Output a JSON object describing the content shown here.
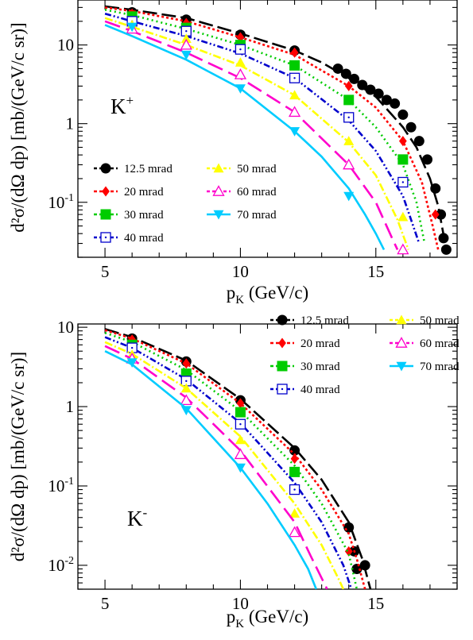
{
  "chart_data": [
    {
      "type": "scatter",
      "panel": "top",
      "particle": {
        "base": "K",
        "sup": "+"
      },
      "xlabel": {
        "main": "p",
        "sub": "K",
        "rest": " (GeV/c)"
      },
      "ylabel": "d²σ/(dΩ dp) [mb/(GeV/c sr)]",
      "xlim": [
        4,
        18
      ],
      "ylim": [
        0.02,
        40
      ],
      "yscale": "log",
      "xticks": [
        5,
        10,
        15
      ],
      "yticks": [
        {
          "v": 0.1,
          "base": "10",
          "exp": "-1"
        },
        {
          "v": 1,
          "base": "1",
          "exp": ""
        },
        {
          "v": 10,
          "base": "10",
          "exp": ""
        }
      ],
      "legend_position": "bottom-left",
      "series": [
        {
          "name": "12.5 mrad",
          "color": "#000000",
          "marker": "circle",
          "dash": "18,6",
          "curve": [
            [
              5,
              31
            ],
            [
              6,
              28
            ],
            [
              8,
              22
            ],
            [
              10,
              14
            ],
            [
              12,
              8.5
            ],
            [
              13,
              6
            ],
            [
              14,
              3.8
            ],
            [
              15,
              2.2
            ],
            [
              16,
              0.9
            ],
            [
              16.5,
              0.5
            ],
            [
              17,
              0.2
            ],
            [
              17.3,
              0.09
            ],
            [
              17.6,
              0.025
            ]
          ],
          "points": [
            [
              6,
              26
            ],
            [
              8,
              21
            ],
            [
              10,
              13.5
            ],
            [
              12,
              8.5
            ],
            [
              13.6,
              5
            ],
            [
              13.9,
              4.3
            ],
            [
              14.2,
              3.7
            ],
            [
              14.5,
              3.1
            ],
            [
              14.8,
              2.7
            ],
            [
              15.1,
              2.4
            ],
            [
              15.4,
              2
            ],
            [
              15.7,
              1.8
            ],
            [
              16,
              1.3
            ],
            [
              16.3,
              0.9
            ],
            [
              16.6,
              0.6
            ],
            [
              16.9,
              0.35
            ],
            [
              17.2,
              0.15
            ],
            [
              17.4,
              0.07
            ],
            [
              17.5,
              0.035
            ],
            [
              17.6,
              0.025
            ]
          ]
        },
        {
          "name": "20 mrad",
          "color": "#ff0000",
          "marker": "diamond",
          "dash": "3,3",
          "curve": [
            [
              5,
              30
            ],
            [
              6,
              27
            ],
            [
              8,
              20
            ],
            [
              10,
              12.5
            ],
            [
              12,
              7.5
            ],
            [
              14,
              3
            ],
            [
              15,
              1.6
            ],
            [
              16,
              0.6
            ],
            [
              16.7,
              0.18
            ],
            [
              17.1,
              0.05
            ],
            [
              17.3,
              0.025
            ]
          ],
          "points": [
            [
              6,
              25
            ],
            [
              8,
              19
            ],
            [
              10,
              12.5
            ],
            [
              12,
              8
            ],
            [
              14,
              3
            ],
            [
              16,
              0.6
            ],
            [
              17.2,
              0.07
            ]
          ]
        },
        {
          "name": "30 mrad",
          "color": "#00cc00",
          "marker": "square",
          "dash": "2,4",
          "curve": [
            [
              5,
              28
            ],
            [
              6,
              24
            ],
            [
              8,
              16
            ],
            [
              10,
              10
            ],
            [
              12,
              5.5
            ],
            [
              14,
              2
            ],
            [
              15,
              0.9
            ],
            [
              16,
              0.3
            ],
            [
              16.5,
              0.1
            ],
            [
              16.8,
              0.03
            ]
          ],
          "points": [
            [
              6,
              23
            ],
            [
              8,
              16.5
            ],
            [
              10,
              10
            ],
            [
              12,
              5.5
            ],
            [
              14,
              2
            ],
            [
              16,
              0.35
            ]
          ]
        },
        {
          "name": "40 mrad",
          "color": "#0000cc",
          "marker": "open-square",
          "dash": "8,3,2,3,2,3",
          "curve": [
            [
              5,
              25
            ],
            [
              6,
              20
            ],
            [
              8,
              13
            ],
            [
              10,
              7.8
            ],
            [
              12,
              3.8
            ],
            [
              14,
              1.1
            ],
            [
              15,
              0.45
            ],
            [
              16,
              0.12
            ],
            [
              16.6,
              0.03
            ]
          ],
          "points": [
            [
              6,
              20
            ],
            [
              8,
              15
            ],
            [
              10,
              8.8
            ],
            [
              12,
              3.8
            ],
            [
              14,
              1.2
            ],
            [
              16,
              0.18
            ]
          ]
        },
        {
          "name": "50 mrad",
          "color": "#ffff00",
          "marker": "triangle-up",
          "dash": "10,3,2,3",
          "curve": [
            [
              5,
              22
            ],
            [
              6,
              17
            ],
            [
              8,
              10
            ],
            [
              10,
              5.5
            ],
            [
              12,
              2.3
            ],
            [
              14,
              0.58
            ],
            [
              15,
              0.22
            ],
            [
              15.8,
              0.06
            ],
            [
              16.2,
              0.025
            ]
          ],
          "points": [
            [
              6,
              18
            ],
            [
              8,
              12
            ],
            [
              10,
              6
            ],
            [
              12,
              2.3
            ],
            [
              14,
              0.6
            ],
            [
              16,
              0.065
            ]
          ]
        },
        {
          "name": "60 mrad",
          "color": "#ff00cc",
          "marker": "open-triangle-up",
          "dash": "20,8",
          "curve": [
            [
              5,
              20
            ],
            [
              6,
              15
            ],
            [
              8,
              8
            ],
            [
              10,
              3.8
            ],
            [
              12,
              1.4
            ],
            [
              14,
              0.3
            ],
            [
              15,
              0.1
            ],
            [
              15.6,
              0.035
            ],
            [
              15.8,
              0.025
            ]
          ],
          "points": [
            [
              6,
              16
            ],
            [
              8,
              10
            ],
            [
              10,
              4.2
            ],
            [
              12,
              1.4
            ],
            [
              14,
              0.3
            ],
            [
              16,
              0.025
            ]
          ]
        },
        {
          "name": "70 mrad",
          "color": "#00ccff",
          "marker": "triangle-down",
          "dash": "",
          "curve": [
            [
              5,
              18
            ],
            [
              6,
              13
            ],
            [
              8,
              6.5
            ],
            [
              10,
              2.8
            ],
            [
              12,
              0.8
            ],
            [
              13,
              0.38
            ],
            [
              14,
              0.15
            ],
            [
              14.6,
              0.07
            ],
            [
              15,
              0.04
            ],
            [
              15.3,
              0.025
            ]
          ],
          "points": [
            [
              6,
              17
            ],
            [
              8,
              7.5
            ],
            [
              10,
              2.8
            ],
            [
              12,
              0.8
            ],
            [
              14,
              0.12
            ]
          ]
        }
      ]
    },
    {
      "type": "scatter",
      "panel": "bottom",
      "particle": {
        "base": "K",
        "sup": "-"
      },
      "xlabel": {
        "main": "p",
        "sub": "K",
        "rest": " (GeV/c)"
      },
      "ylabel": "d²σ/(dΩ dp) [mb/(GeV/c sr)]",
      "xlim": [
        4,
        18
      ],
      "ylim": [
        0.005,
        11
      ],
      "yscale": "log",
      "xticks": [
        5,
        10,
        15
      ],
      "yticks": [
        {
          "v": 0.01,
          "base": "10",
          "exp": "-2"
        },
        {
          "v": 0.1,
          "base": "10",
          "exp": "-1"
        },
        {
          "v": 1,
          "base": "1",
          "exp": ""
        },
        {
          "v": 10,
          "base": "10",
          "exp": ""
        }
      ],
      "legend_position": "top-right",
      "series": [
        {
          "name": "12.5 mrad",
          "color": "#000000",
          "marker": "circle",
          "dash": "18,6",
          "curve": [
            [
              5,
              9.5
            ],
            [
              6,
              7.5
            ],
            [
              8,
              3.8
            ],
            [
              10,
              1.25
            ],
            [
              12,
              0.3
            ],
            [
              13,
              0.12
            ],
            [
              14,
              0.035
            ],
            [
              14.5,
              0.012
            ],
            [
              14.8,
              0.005
            ]
          ],
          "points": [
            [
              6,
              7.2
            ],
            [
              8,
              3.7
            ],
            [
              10,
              1.2
            ],
            [
              12,
              0.28
            ],
            [
              14,
              0.03
            ],
            [
              14.2,
              0.015
            ],
            [
              14.6,
              0.01
            ],
            [
              14.3,
              0.009
            ]
          ]
        },
        {
          "name": "20 mrad",
          "color": "#ff0000",
          "marker": "diamond",
          "dash": "3,3",
          "curve": [
            [
              5,
              9.2
            ],
            [
              6,
              7.2
            ],
            [
              8,
              3.5
            ],
            [
              10,
              1.1
            ],
            [
              12,
              0.25
            ],
            [
              13,
              0.09
            ],
            [
              14,
              0.025
            ],
            [
              14.3,
              0.012
            ],
            [
              14.6,
              0.005
            ]
          ],
          "points": [
            [
              6,
              7
            ],
            [
              8,
              3.5
            ],
            [
              10,
              1.1
            ],
            [
              12,
              0.22
            ],
            [
              14,
              0.015
            ]
          ]
        },
        {
          "name": "30 mrad",
          "color": "#00cc00",
          "marker": "square",
          "dash": "2,4",
          "curve": [
            [
              5,
              8.5
            ],
            [
              6,
              6.5
            ],
            [
              8,
              2.9
            ],
            [
              10,
              0.88
            ],
            [
              12,
              0.18
            ],
            [
              13,
              0.06
            ],
            [
              14,
              0.014
            ],
            [
              14.3,
              0.005
            ]
          ],
          "points": [
            [
              6,
              6
            ],
            [
              8,
              2.6
            ],
            [
              10,
              0.85
            ],
            [
              12,
              0.15
            ]
          ]
        },
        {
          "name": "40 mrad",
          "color": "#0000cc",
          "marker": "open-square",
          "dash": "8,3,2,3,2,3",
          "curve": [
            [
              5,
              7.5
            ],
            [
              6,
              5.5
            ],
            [
              8,
              2.2
            ],
            [
              10,
              0.62
            ],
            [
              12,
              0.11
            ],
            [
              13,
              0.035
            ],
            [
              13.8,
              0.01
            ],
            [
              14.1,
              0.005
            ]
          ],
          "points": [
            [
              6,
              5.5
            ],
            [
              8,
              2.1
            ],
            [
              10,
              0.6
            ],
            [
              12,
              0.09
            ]
          ]
        },
        {
          "name": "50 mrad",
          "color": "#ffff00",
          "marker": "triangle-up",
          "dash": "10,3,2,3",
          "curve": [
            [
              5,
              6.5
            ],
            [
              6,
              4.6
            ],
            [
              8,
              1.7
            ],
            [
              10,
              0.42
            ],
            [
              12,
              0.06
            ],
            [
              13,
              0.018
            ],
            [
              13.6,
              0.007
            ],
            [
              13.8,
              0.005
            ]
          ],
          "points": [
            [
              6,
              4.5
            ],
            [
              8,
              1.7
            ],
            [
              10,
              0.38
            ],
            [
              12,
              0.045
            ]
          ]
        },
        {
          "name": "60 mrad",
          "color": "#ff00cc",
          "marker": "open-triangle-up",
          "dash": "20,8",
          "curve": [
            [
              5,
              5.8
            ],
            [
              6,
              4
            ],
            [
              8,
              1.3
            ],
            [
              10,
              0.28
            ],
            [
              12,
              0.035
            ],
            [
              12.6,
              0.013
            ],
            [
              13.2,
              0.005
            ]
          ],
          "points": [
            [
              6,
              4
            ],
            [
              8,
              1.2
            ],
            [
              10,
              0.25
            ],
            [
              12,
              0.026
            ]
          ]
        },
        {
          "name": "70 mrad",
          "color": "#00ccff",
          "marker": "triangle-down",
          "dash": "",
          "curve": [
            [
              5,
              5
            ],
            [
              6,
              3.4
            ],
            [
              8,
              0.95
            ],
            [
              10,
              0.17
            ],
            [
              11,
              0.06
            ],
            [
              12,
              0.018
            ],
            [
              12.5,
              0.009
            ],
            [
              12.8,
              0.005
            ]
          ],
          "points": [
            [
              6,
              3.6
            ],
            [
              8,
              0.9
            ],
            [
              10,
              0.17
            ]
          ]
        }
      ]
    }
  ]
}
